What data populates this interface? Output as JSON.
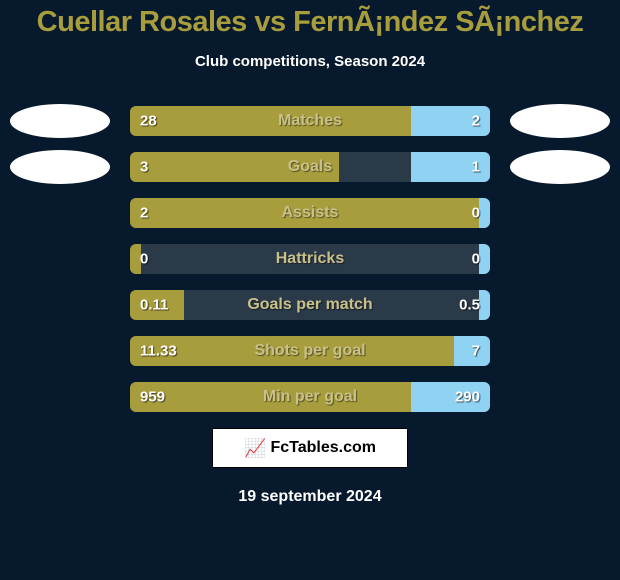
{
  "background_color": "#07192c",
  "title": "Cuellar Rosales vs FernÃ¡ndez SÃ¡nchez",
  "title_color": "#a89d3c",
  "subtitle": "Club competitions, Season 2024",
  "subtitle_color": "#ffffff",
  "bar_bg_color": "#2b3a49",
  "left_color": "#a89d3c",
  "right_color": "#8fd2f2",
  "bar_title_color": "#c9c18a",
  "branding": {
    "icon": "📈",
    "text": "FcTables.com"
  },
  "date": "19 september 2024",
  "date_color": "#ffffff",
  "avatar_color": "#ffffff",
  "rows": [
    {
      "name": "Matches",
      "left_val": "28",
      "right_val": "2",
      "left_pct": 78,
      "right_pct": 22,
      "show_avatars": true
    },
    {
      "name": "Goals",
      "left_val": "3",
      "right_val": "1",
      "left_pct": 58,
      "right_pct": 22,
      "show_avatars": true
    },
    {
      "name": "Assists",
      "left_val": "2",
      "right_val": "0",
      "left_pct": 97,
      "right_pct": 3,
      "show_avatars": false
    },
    {
      "name": "Hattricks",
      "left_val": "0",
      "right_val": "0",
      "left_pct": 3,
      "right_pct": 3,
      "show_avatars": false
    },
    {
      "name": "Goals per match",
      "left_val": "0.11",
      "right_val": "0.5",
      "left_pct": 15,
      "right_pct": 3,
      "show_avatars": false
    },
    {
      "name": "Shots per goal",
      "left_val": "11.33",
      "right_val": "7",
      "left_pct": 90,
      "right_pct": 10,
      "show_avatars": false
    },
    {
      "name": "Min per goal",
      "left_val": "959",
      "right_val": "290",
      "left_pct": 78,
      "right_pct": 22,
      "show_avatars": false
    }
  ]
}
